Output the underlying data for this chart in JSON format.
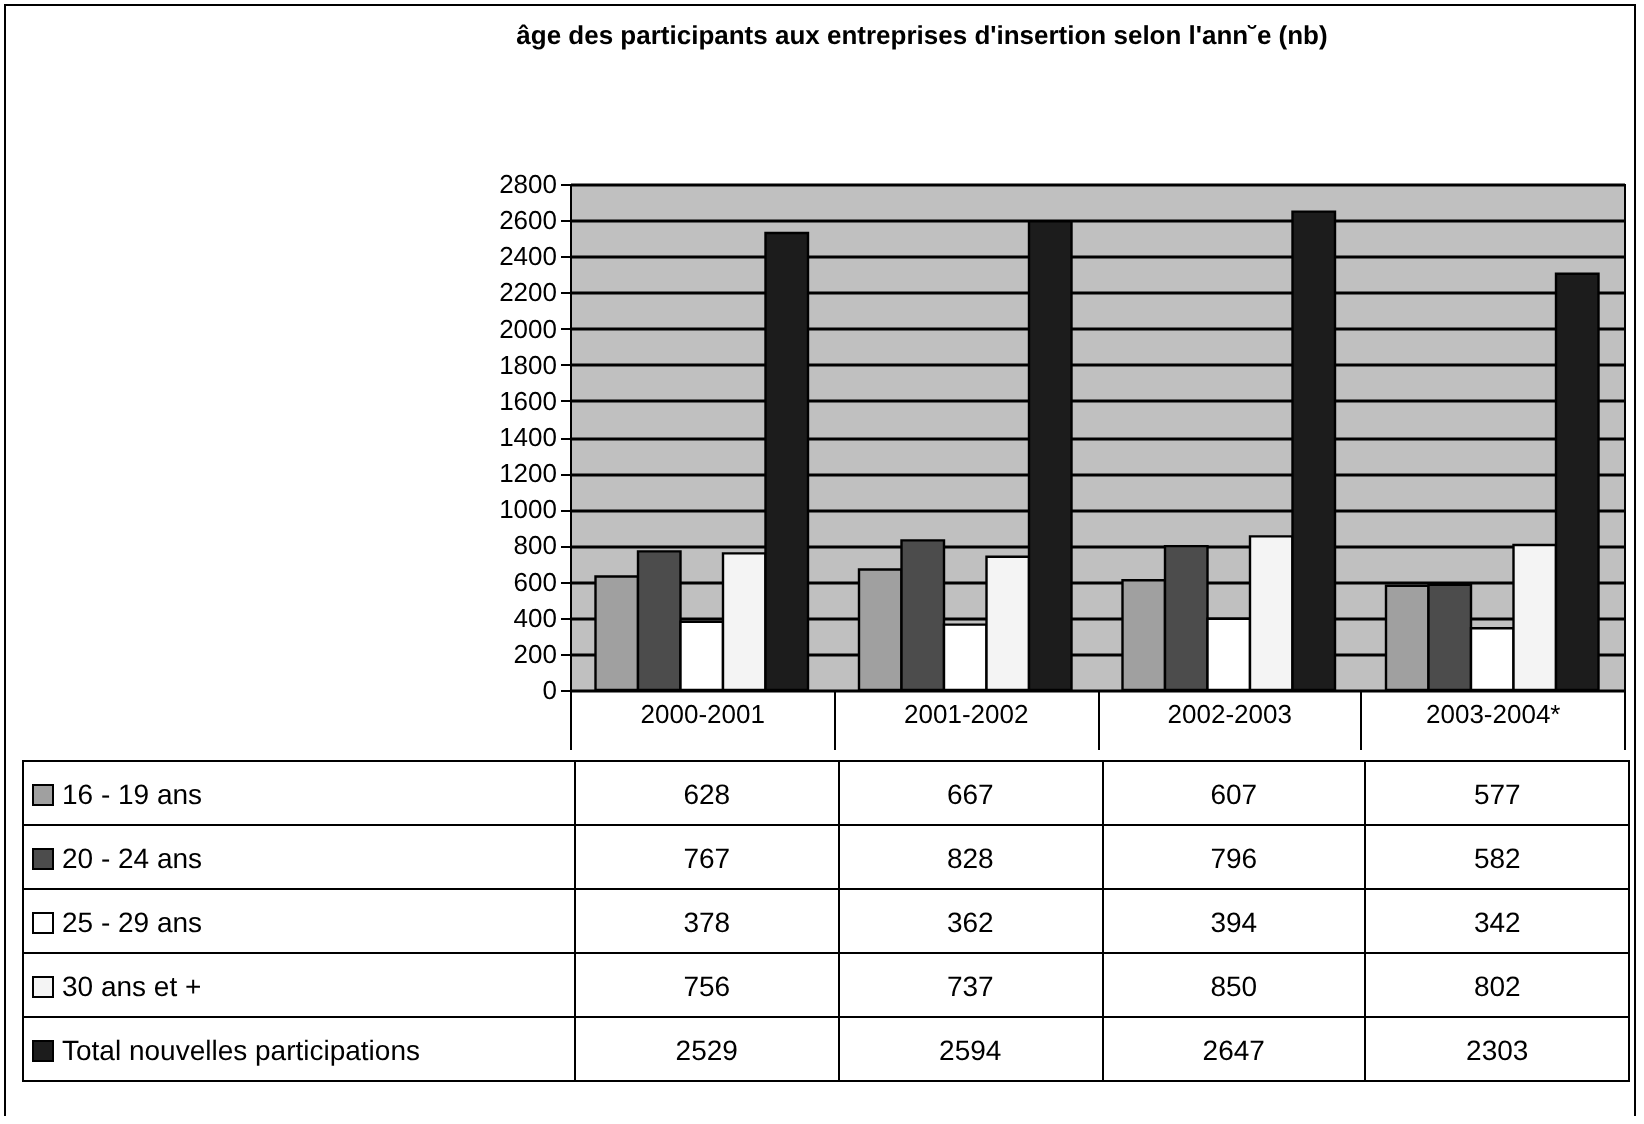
{
  "chart_data": {
    "type": "bar",
    "title": "âge des participants aux entreprises d'insertion selon l'ann˘e (nb)",
    "categories": [
      "2000-2001",
      "2001-2002",
      "2002-2003",
      "2003-2004*"
    ],
    "series": [
      {
        "name": "16 - 19 ans",
        "color": "#a0a0a0",
        "values": [
          628,
          667,
          607,
          577
        ]
      },
      {
        "name": "20 - 24 ans",
        "color": "#4c4c4c",
        "values": [
          767,
          828,
          796,
          582
        ]
      },
      {
        "name": "25 - 29 ans",
        "color": "#ffffff",
        "values": [
          378,
          362,
          394,
          342
        ]
      },
      {
        "name": "30 ans et +",
        "color": "#f4f4f4",
        "values": [
          756,
          737,
          850,
          802
        ]
      },
      {
        "name": "Total nouvelles participations",
        "color": "#1c1c1c",
        "values": [
          2529,
          2594,
          2647,
          2303
        ]
      }
    ],
    "ylim": [
      0,
      2800
    ],
    "yticks": [
      0,
      200,
      400,
      600,
      800,
      1000,
      1200,
      1400,
      1600,
      1800,
      2000,
      2200,
      2400,
      2600,
      2800
    ],
    "grid": "y",
    "data_labels": true,
    "legend": "bottom"
  }
}
